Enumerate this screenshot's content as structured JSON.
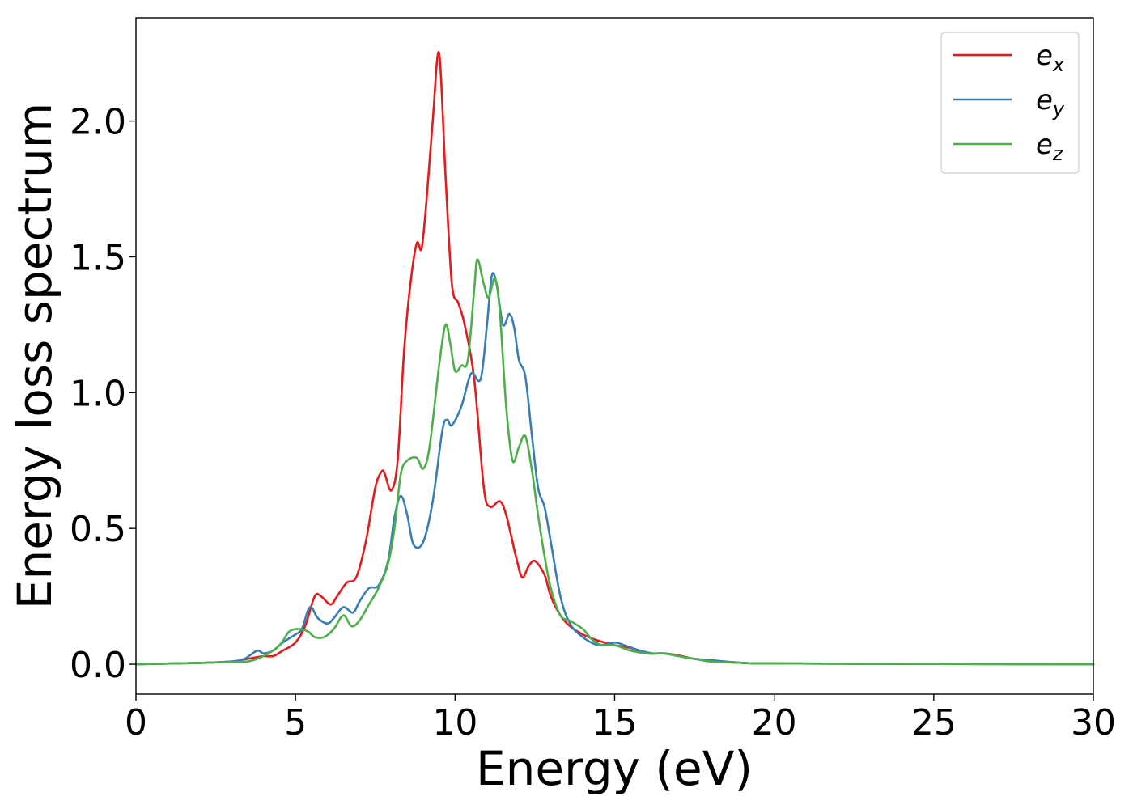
{
  "chart_data": {
    "type": "line",
    "title": "",
    "xlabel": "Energy (eV)",
    "ylabel": "Energy loss spectrum",
    "xlim": [
      0,
      30
    ],
    "ylim": [
      -0.11,
      2.38
    ],
    "x_ticks": [
      0,
      5,
      10,
      15,
      20,
      25,
      30
    ],
    "y_ticks": [
      0.0,
      0.5,
      1.0,
      1.5,
      2.0
    ],
    "x_tick_labels": [
      "0",
      "5",
      "10",
      "15",
      "20",
      "25",
      "30"
    ],
    "y_tick_labels": [
      "0.0",
      "0.5",
      "1.0",
      "1.5",
      "2.0"
    ],
    "grid": false,
    "legend_position": "top-right",
    "series": [
      {
        "name": "e_x",
        "label_base": "e",
        "label_sub": "x",
        "color": "#e41a1c",
        "x": [
          0,
          2,
          3,
          3.5,
          4,
          4.3,
          4.6,
          5,
          5.3,
          5.6,
          5.8,
          6.1,
          6.3,
          6.6,
          6.9,
          7.2,
          7.5,
          7.7,
          7.8,
          8.0,
          8.2,
          8.4,
          8.6,
          8.8,
          8.95,
          9.1,
          9.3,
          9.5,
          9.7,
          9.9,
          10.1,
          10.3,
          10.6,
          10.9,
          11.1,
          11.4,
          11.6,
          11.9,
          12.1,
          12.3,
          12.5,
          12.8,
          13.0,
          13.3,
          13.6,
          14.0,
          14.4,
          15.0,
          15.5,
          16.0,
          16.5,
          16.9,
          17.5,
          18.0,
          19.0,
          20.0,
          25.0,
          30.0
        ],
        "y": [
          0.0,
          0.005,
          0.01,
          0.02,
          0.03,
          0.03,
          0.05,
          0.08,
          0.14,
          0.25,
          0.25,
          0.22,
          0.25,
          0.3,
          0.32,
          0.45,
          0.65,
          0.71,
          0.7,
          0.64,
          0.75,
          1.15,
          1.4,
          1.55,
          1.53,
          1.7,
          2.0,
          2.25,
          1.8,
          1.4,
          1.33,
          1.25,
          1.05,
          0.65,
          0.58,
          0.6,
          0.55,
          0.4,
          0.32,
          0.36,
          0.38,
          0.33,
          0.25,
          0.18,
          0.14,
          0.11,
          0.09,
          0.07,
          0.06,
          0.04,
          0.04,
          0.035,
          0.02,
          0.015,
          0.005,
          0.003,
          0.001,
          0.0
        ]
      },
      {
        "name": "e_y",
        "label_base": "e",
        "label_sub": "y",
        "color": "#377eb8",
        "x": [
          0,
          2,
          3,
          3.4,
          3.8,
          4.0,
          4.3,
          4.6,
          5.0,
          5.2,
          5.45,
          5.7,
          6.0,
          6.2,
          6.5,
          6.8,
          7.0,
          7.3,
          7.6,
          7.9,
          8.1,
          8.3,
          8.5,
          8.7,
          9.0,
          9.3,
          9.6,
          9.75,
          9.9,
          10.2,
          10.5,
          10.8,
          11.0,
          11.15,
          11.3,
          11.5,
          11.7,
          11.85,
          12.0,
          12.2,
          12.4,
          12.6,
          12.8,
          13.0,
          13.3,
          13.6,
          14.0,
          14.5,
          15.0,
          15.3,
          15.8,
          16.2,
          16.6,
          17.0,
          17.5,
          18.0,
          19.0,
          20.0,
          25.0,
          30.0
        ],
        "y": [
          0.0,
          0.005,
          0.01,
          0.02,
          0.05,
          0.04,
          0.05,
          0.08,
          0.11,
          0.13,
          0.21,
          0.17,
          0.15,
          0.17,
          0.21,
          0.19,
          0.23,
          0.28,
          0.29,
          0.38,
          0.54,
          0.62,
          0.55,
          0.44,
          0.45,
          0.6,
          0.86,
          0.9,
          0.88,
          0.95,
          1.07,
          1.05,
          1.25,
          1.43,
          1.4,
          1.25,
          1.29,
          1.24,
          1.12,
          1.06,
          0.85,
          0.65,
          0.58,
          0.45,
          0.25,
          0.15,
          0.1,
          0.07,
          0.08,
          0.07,
          0.05,
          0.04,
          0.04,
          0.03,
          0.02,
          0.015,
          0.005,
          0.003,
          0.001,
          0.0
        ]
      },
      {
        "name": "e_z",
        "label_base": "e",
        "label_sub": "z",
        "color": "#4daf4a",
        "x": [
          0,
          2,
          3,
          3.5,
          4.0,
          4.5,
          4.8,
          5.1,
          5.4,
          5.6,
          5.9,
          6.2,
          6.5,
          6.75,
          7.0,
          7.3,
          7.6,
          7.9,
          8.1,
          8.3,
          8.5,
          8.8,
          9.0,
          9.2,
          9.5,
          9.7,
          9.85,
          10.0,
          10.2,
          10.4,
          10.6,
          10.7,
          10.9,
          11.05,
          11.25,
          11.4,
          11.6,
          11.8,
          12.0,
          12.2,
          12.4,
          12.6,
          12.8,
          13.0,
          13.3,
          13.6,
          14.0,
          14.3,
          14.6,
          15.0,
          15.5,
          16.0,
          16.5,
          17.0,
          17.5,
          18.0,
          19.0,
          20.0,
          25.0,
          30.0
        ],
        "y": [
          0.0,
          0.005,
          0.008,
          0.01,
          0.03,
          0.07,
          0.12,
          0.13,
          0.12,
          0.1,
          0.1,
          0.13,
          0.18,
          0.14,
          0.16,
          0.22,
          0.28,
          0.37,
          0.5,
          0.7,
          0.75,
          0.76,
          0.72,
          0.8,
          1.1,
          1.25,
          1.18,
          1.08,
          1.1,
          1.12,
          1.38,
          1.49,
          1.4,
          1.35,
          1.42,
          1.3,
          0.95,
          0.75,
          0.8,
          0.84,
          0.72,
          0.55,
          0.4,
          0.28,
          0.18,
          0.16,
          0.13,
          0.09,
          0.07,
          0.07,
          0.05,
          0.04,
          0.04,
          0.03,
          0.02,
          0.01,
          0.005,
          0.003,
          0.001,
          0.0
        ]
      }
    ]
  }
}
